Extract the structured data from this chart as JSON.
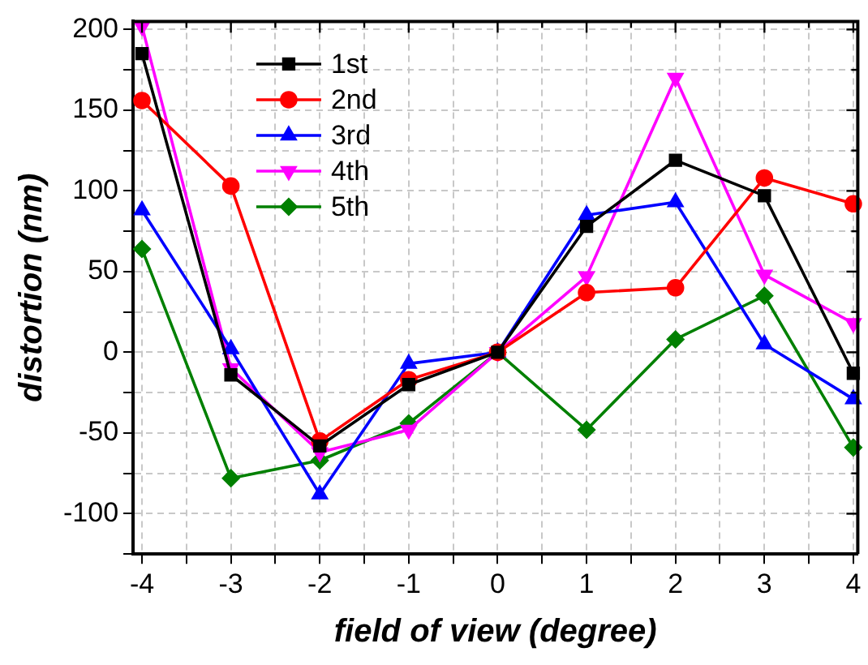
{
  "chart_data": {
    "type": "line",
    "xlabel": "field of view (degree)",
    "ylabel": "distortion (nm)",
    "x": [
      -4,
      -3,
      -2,
      -1,
      0,
      1,
      2,
      3,
      4
    ],
    "series": [
      {
        "name": "1st",
        "color": "#000000",
        "marker": "square",
        "values": [
          185,
          -14,
          -58,
          -20,
          0,
          78,
          119,
          97,
          -13
        ]
      },
      {
        "name": "2nd",
        "color": "#ff0000",
        "marker": "circle",
        "values": [
          156,
          103,
          -55,
          -17,
          0,
          37,
          40,
          108,
          92
        ]
      },
      {
        "name": "3rd",
        "color": "#0000ff",
        "marker": "triangle",
        "values": [
          88,
          2,
          -88,
          -7,
          0,
          85,
          93,
          5,
          -29
        ]
      },
      {
        "name": "4th",
        "color": "#ff00ff",
        "marker": "triangle-down",
        "values": [
          202,
          -10,
          -62,
          -48,
          0,
          47,
          170,
          48,
          18
        ]
      },
      {
        "name": "5th",
        "color": "#008000",
        "marker": "diamond",
        "values": [
          64,
          -78,
          -67,
          -44,
          0,
          -48,
          8,
          35,
          -59
        ]
      }
    ],
    "xlim": [
      -4.1,
      4.05
    ],
    "ylim": [
      -125,
      205
    ],
    "xticks": [
      -4,
      {
        "value": -3.5,
        "label": null
      },
      -3,
      {
        "value": -2.5,
        "label": null
      },
      -2,
      {
        "value": -1.5,
        "label": null
      },
      -1,
      {
        "value": -0.5,
        "label": null
      },
      0,
      {
        "value": 0.5,
        "label": null
      },
      1,
      {
        "value": 1.5,
        "label": null
      },
      2,
      {
        "value": 2.5,
        "label": null
      },
      3,
      {
        "value": 3.5,
        "label": null
      },
      4
    ],
    "yticks": [
      {
        "value": -125,
        "label": null
      },
      -100,
      {
        "value": -75,
        "label": null
      },
      -50,
      {
        "value": -25,
        "label": null
      },
      0,
      {
        "value": 25,
        "label": null
      },
      50,
      {
        "value": 75,
        "label": null
      },
      100,
      {
        "value": 125,
        "label": null
      },
      150,
      {
        "value": 175,
        "label": null
      },
      200
    ],
    "grid": true,
    "legend": "top left",
    "line_style": "solid"
  }
}
